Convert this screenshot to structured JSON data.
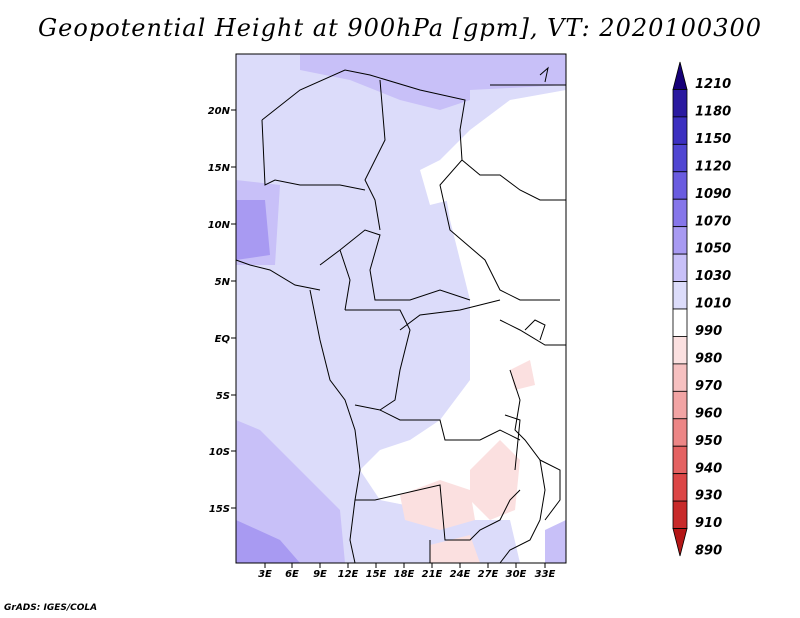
{
  "title": "Geopotential Height at 900hPa [gpm], VT: 2020100300",
  "credit": "GrADS: IGES/COLA",
  "map": {
    "lat_labels": [
      "20N",
      "15N",
      "10N",
      "5N",
      "EQ",
      "5S",
      "10S",
      "15S"
    ],
    "lon_labels": [
      "3E",
      "6E",
      "9E",
      "12E",
      "15E",
      "18E",
      "21E",
      "24E",
      "27E",
      "30E",
      "33E"
    ]
  },
  "colorbar": {
    "labels": [
      "1210",
      "1180",
      "1150",
      "1120",
      "1090",
      "1070",
      "1050",
      "1030",
      "1010",
      "990",
      "980",
      "970",
      "960",
      "950",
      "940",
      "930",
      "910",
      "890"
    ],
    "colors": [
      "#160078",
      "#2a1aa0",
      "#3c30c0",
      "#5046d2",
      "#6a5ce0",
      "#8676ea",
      "#a89af2",
      "#c8c0f8",
      "#dcdcfa",
      "#ffffff",
      "#fbe0e0",
      "#f6c0c0",
      "#f2a4a4",
      "#ec8686",
      "#e46262",
      "#dc4646",
      "#c82a2a",
      "#b41616"
    ]
  }
}
